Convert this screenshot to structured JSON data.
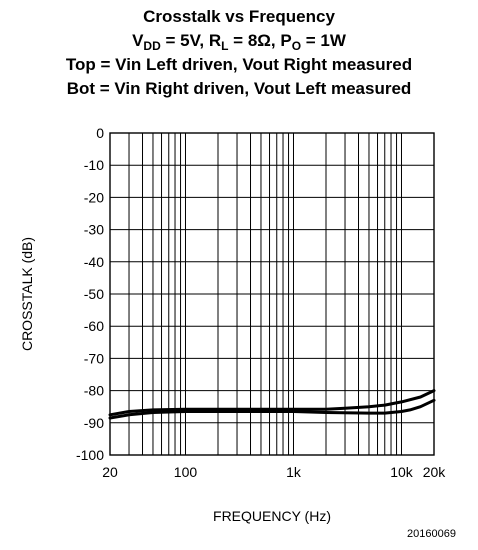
{
  "title": {
    "line1": "Crosstalk vs Frequency",
    "line2": {
      "v_main": "V",
      "v_sub": "DD",
      "v_rest": " = 5V, ",
      "r_main": "R",
      "r_sub": "L",
      "r_rest": " = 8Ω, ",
      "p_main": "P",
      "p_sub": "O",
      "p_rest": " = 1W"
    },
    "line3": "Top = Vin Left driven, Vout Right measured",
    "line4": "Bot = Vin Right driven, Vout Left measured"
  },
  "figure_id": "20160069",
  "chart_data": {
    "type": "line",
    "xlabel": "FREQUENCY (Hz)",
    "ylabel": "CROSSTALK (dB)",
    "xscale": "log",
    "xlim": [
      20,
      20000
    ],
    "ylim": [
      -100,
      0
    ],
    "grid": true,
    "x_ticks": [
      {
        "value": 20,
        "label": "20"
      },
      {
        "value": 100,
        "label": "100"
      },
      {
        "value": 1000,
        "label": "1k"
      },
      {
        "value": 10000,
        "label": "10k"
      },
      {
        "value": 20000,
        "label": "20k"
      }
    ],
    "y_ticks": [
      0,
      -10,
      -20,
      -30,
      -40,
      -50,
      -60,
      -70,
      -80,
      -90,
      -100
    ],
    "series": [
      {
        "x": [
          20,
          30,
          50,
          100,
          200,
          500,
          1000,
          2000,
          3000,
          5000,
          7000,
          10000,
          15000,
          20000
        ],
        "y": [
          -87.5,
          -86.5,
          -86,
          -85.8,
          -85.8,
          -85.8,
          -85.8,
          -85.8,
          -85.5,
          -85,
          -84.5,
          -83.5,
          -82,
          -80
        ]
      },
      {
        "x": [
          20,
          30,
          50,
          100,
          200,
          500,
          1000,
          2000,
          5000,
          7000,
          10000,
          12000,
          15000,
          20000
        ],
        "y": [
          -88.5,
          -87.5,
          -86.8,
          -86.5,
          -86.5,
          -86.5,
          -86.5,
          -86.8,
          -87,
          -87,
          -86.5,
          -86,
          -85,
          -83
        ]
      }
    ]
  }
}
